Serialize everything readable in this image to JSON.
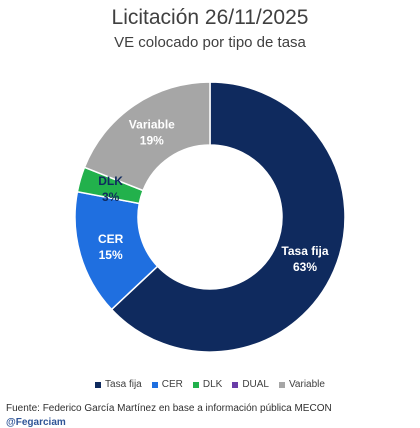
{
  "chart_data": {
    "type": "pie",
    "title": "Licitación 26/11/2025",
    "subtitle": "VE colocado por tipo de tasa",
    "categories": [
      "Tasa fija",
      "CER",
      "DLK",
      "DUAL",
      "Variable"
    ],
    "values": [
      63,
      15,
      3,
      0,
      19
    ],
    "value_labels": [
      "63%",
      "15%",
      "3%",
      "",
      "19%"
    ],
    "colors": [
      "#0f2a5e",
      "#1f6fe0",
      "#22b14c",
      "#6a3da8",
      "#a6a6a6"
    ],
    "donut": true,
    "legend_position": "bottom"
  },
  "footer": {
    "source": "Fuente: Federico García Martínez en base a información pública MECON",
    "handle": "@Fegarciam"
  }
}
